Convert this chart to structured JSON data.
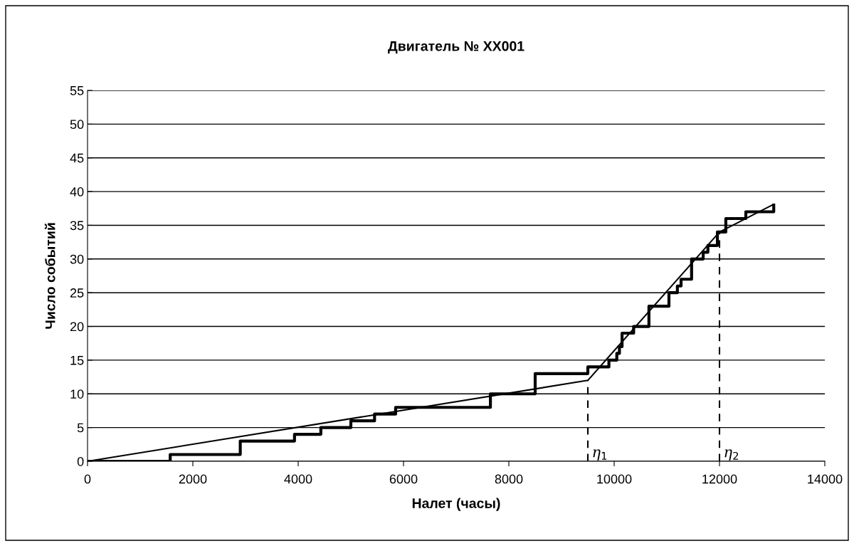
{
  "chart_data": {
    "type": "line",
    "title": "Двигатель № XX001",
    "xlabel": "Налет (часы)",
    "ylabel": "Число событий",
    "xlim": [
      0,
      14000
    ],
    "xticks": [
      0,
      2000,
      4000,
      6000,
      8000,
      10000,
      12000,
      14000
    ],
    "ylim": [
      0,
      55
    ],
    "yticks": [
      0,
      5,
      10,
      15,
      20,
      25,
      30,
      35,
      40,
      45,
      50,
      55
    ],
    "grid": "y",
    "legend": false,
    "series": [
      {
        "type": "step",
        "color": "#000000",
        "x": [
          0,
          1570,
          2900,
          3930,
          4430,
          5000,
          5450,
          5850,
          7650,
          8500,
          9500,
          9900,
          10050,
          10100,
          10150,
          10370,
          10660,
          11040,
          11200,
          11270,
          11470,
          11690,
          11780,
          11960,
          12120,
          12500,
          13030
        ],
        "values": [
          0,
          1,
          3,
          4,
          5,
          6,
          7,
          8,
          10,
          13,
          14,
          15,
          16,
          17,
          19,
          20,
          23,
          25,
          26,
          27,
          30,
          31,
          32,
          34,
          36,
          37,
          38
        ]
      },
      {
        "color": "#000000",
        "x": [
          0,
          9500,
          12000,
          13000
        ],
        "values": [
          0,
          12,
          34,
          38
        ]
      },
      {
        "color": "#000000",
        "line_style": "dashed",
        "x": [
          9500,
          9500
        ],
        "values": [
          0,
          12
        ]
      },
      {
        "color": "#000000",
        "line_style": "dashed",
        "x": [
          12000,
          12000
        ],
        "values": [
          0,
          34
        ]
      }
    ],
    "annotations": [
      {
        "text": "η$_{1}$",
        "x": 9500,
        "y": 0
      },
      {
        "text": "η$_{2}$",
        "x": 12000,
        "y": 0
      }
    ]
  }
}
